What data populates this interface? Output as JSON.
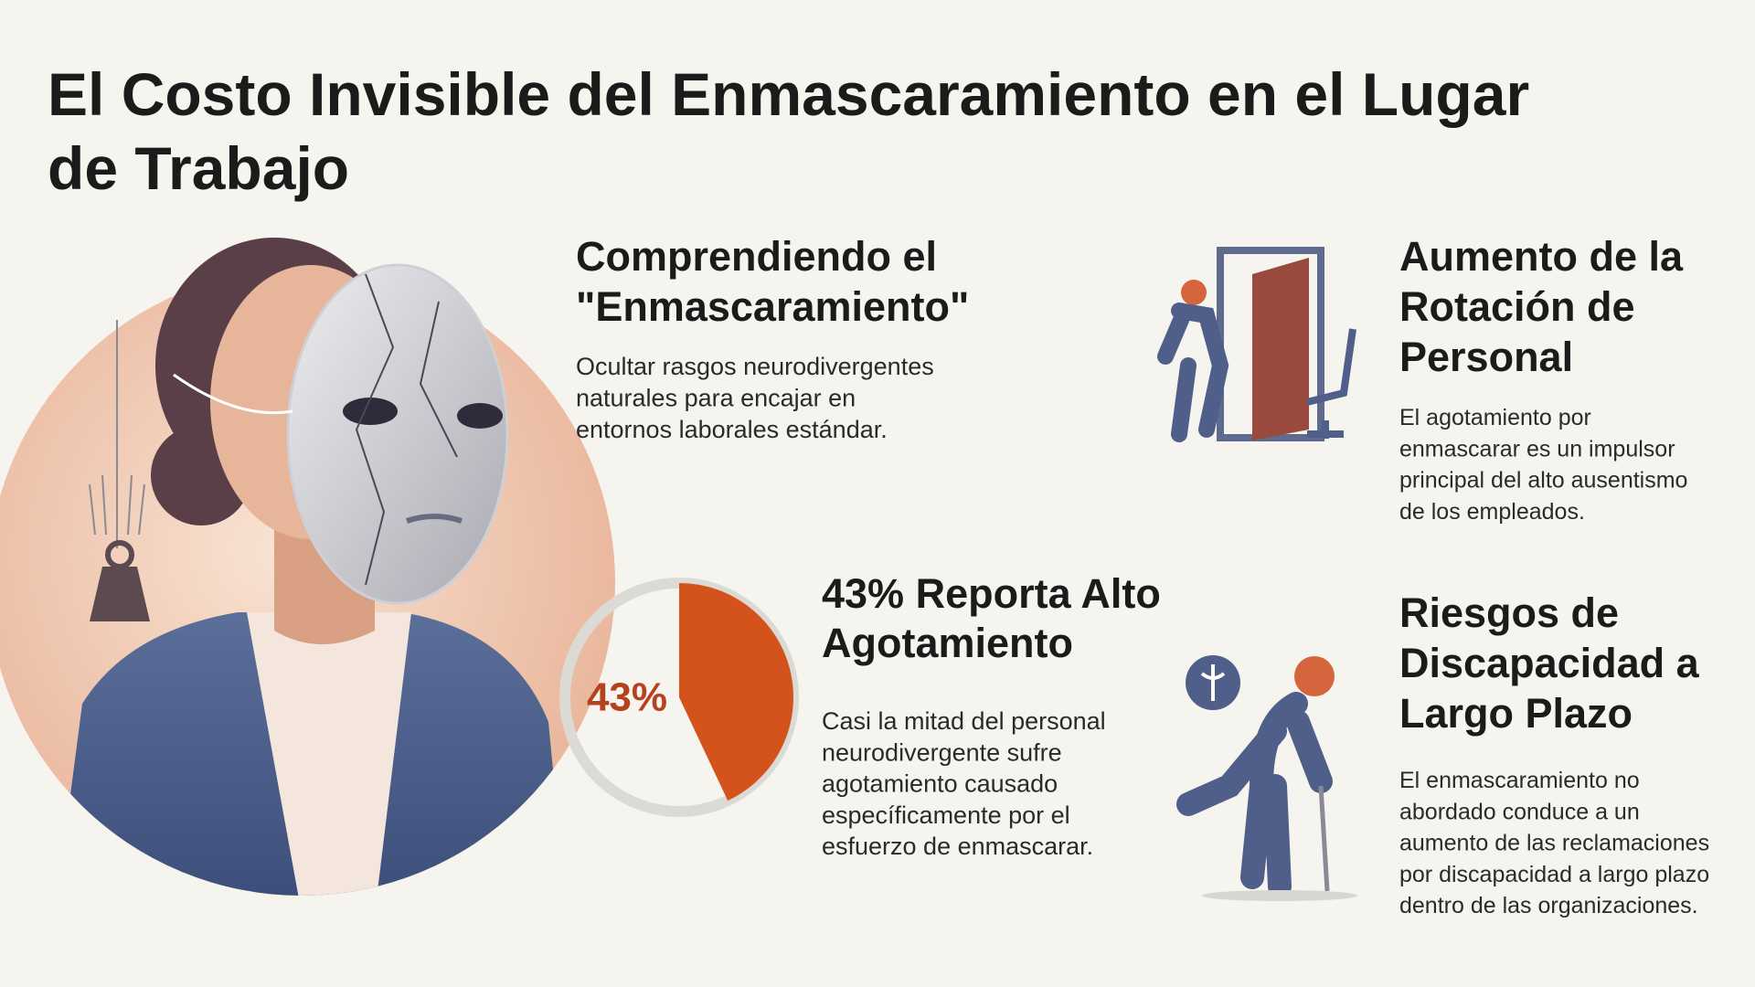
{
  "header": {
    "title": [
      "El Costo Invisible del Enmascaramiento en el Lugar",
      "de Trabajo"
    ]
  },
  "sections": [
    {
      "heading": [
        "Comprendiendo el",
        "\"Enmascaramiento\""
      ],
      "body": [
        "Ocultar rasgos neurodivergentes",
        "naturales para encajar en",
        "entornos laborales estándar."
      ]
    },
    {
      "heading": [
        "43% Reporta Alto",
        "Agotamiento"
      ],
      "body": [
        "Casi la mitad del personal",
        "neurodivergente sufre",
        "agotamiento causado",
        "específicamente por el",
        "esfuerzo de enmascarar."
      ]
    },
    {
      "heading": [
        "Aumento de la",
        "Rotación de",
        "Personal"
      ],
      "body": [
        "El agotamiento por",
        "enmascarar es un impulsor",
        "principal del alto ausentismo",
        "de los empleados."
      ]
    },
    {
      "heading": [
        "Riesgos de",
        "Discapacidad a",
        "Largo Plazo"
      ],
      "body": [
        "El enmascaramiento no",
        "abordado conduce a un",
        "aumento de las reclamaciones",
        "por discapacidad a largo plazo",
        "dentro de las organizaciones."
      ]
    }
  ],
  "stat": {
    "value": 43,
    "label": "43%",
    "color": "#d4531c"
  }
}
